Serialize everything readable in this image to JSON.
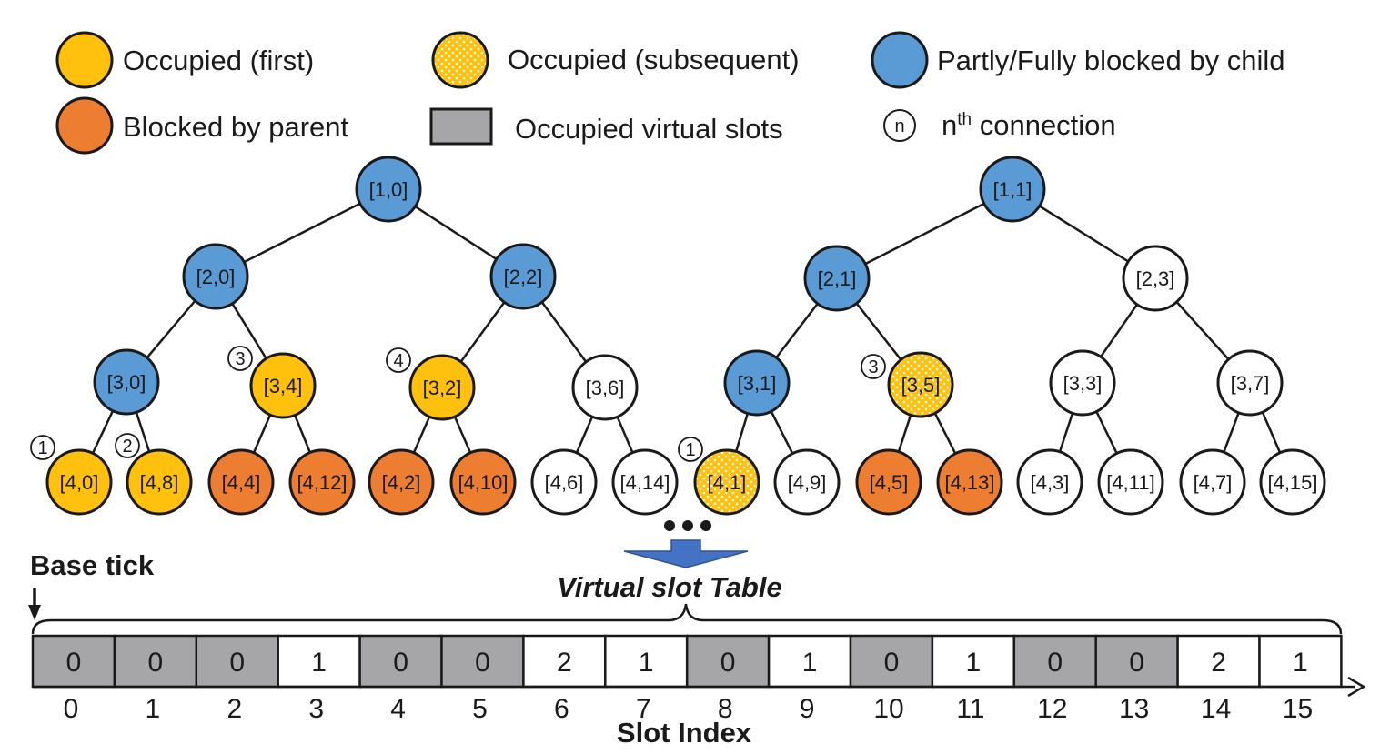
{
  "colors": {
    "occupied_first": "#FFC10E",
    "blocked_parent": "#ED7D31",
    "blocked_child": "#5B9BD5",
    "empty": "#FFFFFF",
    "virtual_slot": "#A6A6A8",
    "arrow": "#4472C4",
    "stroke": "#1a1a1a"
  },
  "legend": {
    "occupied_first": "Occupied (first)",
    "occupied_subsequent": "Occupied (subsequent)",
    "blocked_child": "Partly/Fully blocked by child",
    "blocked_parent": "Blocked by parent",
    "virtual_slots": "Occupied virtual slots",
    "nth_symbol": "n",
    "nth_base": "n",
    "nth_sup": "th",
    "nth_rest": " connection"
  },
  "nodes": [
    {
      "id": "n10",
      "label": "[1,0]",
      "state": "blocked_child"
    },
    {
      "id": "n11",
      "label": "[1,1]",
      "state": "blocked_child"
    },
    {
      "id": "n20",
      "label": "[2,0]",
      "state": "blocked_child"
    },
    {
      "id": "n22",
      "label": "[2,2]",
      "state": "blocked_child"
    },
    {
      "id": "n21",
      "label": "[2,1]",
      "state": "blocked_child"
    },
    {
      "id": "n23",
      "label": "[2,3]",
      "state": "empty"
    },
    {
      "id": "n30",
      "label": "[3,0]",
      "state": "blocked_child"
    },
    {
      "id": "n34",
      "label": "[3,4]",
      "state": "occupied_first",
      "conn": "3"
    },
    {
      "id": "n32",
      "label": "[3,2]",
      "state": "occupied_first",
      "conn": "4"
    },
    {
      "id": "n36",
      "label": "[3,6]",
      "state": "empty"
    },
    {
      "id": "n31",
      "label": "[3,1]",
      "state": "blocked_child"
    },
    {
      "id": "n35",
      "label": "[3,5]",
      "state": "occupied_subsequent",
      "conn": "3"
    },
    {
      "id": "n33",
      "label": "[3,3]",
      "state": "empty"
    },
    {
      "id": "n37",
      "label": "[3,7]",
      "state": "empty"
    },
    {
      "id": "n40",
      "label": "[4,0]",
      "state": "occupied_first",
      "conn": "1"
    },
    {
      "id": "n48",
      "label": "[4,8]",
      "state": "occupied_first",
      "conn": "2"
    },
    {
      "id": "n44",
      "label": "[4,4]",
      "state": "blocked_parent"
    },
    {
      "id": "n412",
      "label": "[4,12]",
      "state": "blocked_parent"
    },
    {
      "id": "n42",
      "label": "[4,2]",
      "state": "blocked_parent"
    },
    {
      "id": "n410",
      "label": "[4,10]",
      "state": "blocked_parent"
    },
    {
      "id": "n46",
      "label": "[4,6]",
      "state": "empty"
    },
    {
      "id": "n414",
      "label": "[4,14]",
      "state": "empty"
    },
    {
      "id": "n41",
      "label": "[4,1]",
      "state": "occupied_subsequent",
      "conn": "1"
    },
    {
      "id": "n49",
      "label": "[4,9]",
      "state": "empty"
    },
    {
      "id": "n45",
      "label": "[4,5]",
      "state": "blocked_parent"
    },
    {
      "id": "n413",
      "label": "[4,13]",
      "state": "blocked_parent"
    },
    {
      "id": "n43",
      "label": "[4,3]",
      "state": "empty"
    },
    {
      "id": "n411",
      "label": "[4,11]",
      "state": "empty"
    },
    {
      "id": "n47",
      "label": "[4,7]",
      "state": "empty"
    },
    {
      "id": "n415",
      "label": "[4,15]",
      "state": "empty"
    }
  ],
  "edges": [
    [
      "n10",
      "n20"
    ],
    [
      "n10",
      "n22"
    ],
    [
      "n11",
      "n21"
    ],
    [
      "n11",
      "n23"
    ],
    [
      "n20",
      "n30"
    ],
    [
      "n20",
      "n34"
    ],
    [
      "n22",
      "n32"
    ],
    [
      "n22",
      "n36"
    ],
    [
      "n21",
      "n31"
    ],
    [
      "n21",
      "n35"
    ],
    [
      "n23",
      "n33"
    ],
    [
      "n23",
      "n37"
    ],
    [
      "n30",
      "n40"
    ],
    [
      "n30",
      "n48"
    ],
    [
      "n34",
      "n44"
    ],
    [
      "n34",
      "n412"
    ],
    [
      "n32",
      "n42"
    ],
    [
      "n32",
      "n410"
    ],
    [
      "n36",
      "n46"
    ],
    [
      "n36",
      "n414"
    ],
    [
      "n31",
      "n41"
    ],
    [
      "n31",
      "n49"
    ],
    [
      "n35",
      "n45"
    ],
    [
      "n35",
      "n413"
    ],
    [
      "n33",
      "n43"
    ],
    [
      "n33",
      "n411"
    ],
    [
      "n37",
      "n47"
    ],
    [
      "n37",
      "n415"
    ]
  ],
  "table": {
    "title": "Virtual slot Table",
    "base_tick": "Base tick",
    "axis_label": "Slot Index",
    "cells": [
      {
        "value": "0",
        "occupied": true
      },
      {
        "value": "0",
        "occupied": true
      },
      {
        "value": "0",
        "occupied": true
      },
      {
        "value": "1",
        "occupied": false
      },
      {
        "value": "0",
        "occupied": true
      },
      {
        "value": "0",
        "occupied": true
      },
      {
        "value": "2",
        "occupied": false
      },
      {
        "value": "1",
        "occupied": false
      },
      {
        "value": "0",
        "occupied": true
      },
      {
        "value": "1",
        "occupied": false
      },
      {
        "value": "0",
        "occupied": true
      },
      {
        "value": "1",
        "occupied": false
      },
      {
        "value": "0",
        "occupied": true
      },
      {
        "value": "0",
        "occupied": true
      },
      {
        "value": "2",
        "occupied": false
      },
      {
        "value": "1",
        "occupied": false
      }
    ],
    "indices": [
      "0",
      "1",
      "2",
      "3",
      "4",
      "5",
      "6",
      "7",
      "8",
      "9",
      "10",
      "11",
      "12",
      "13",
      "14",
      "15"
    ]
  }
}
